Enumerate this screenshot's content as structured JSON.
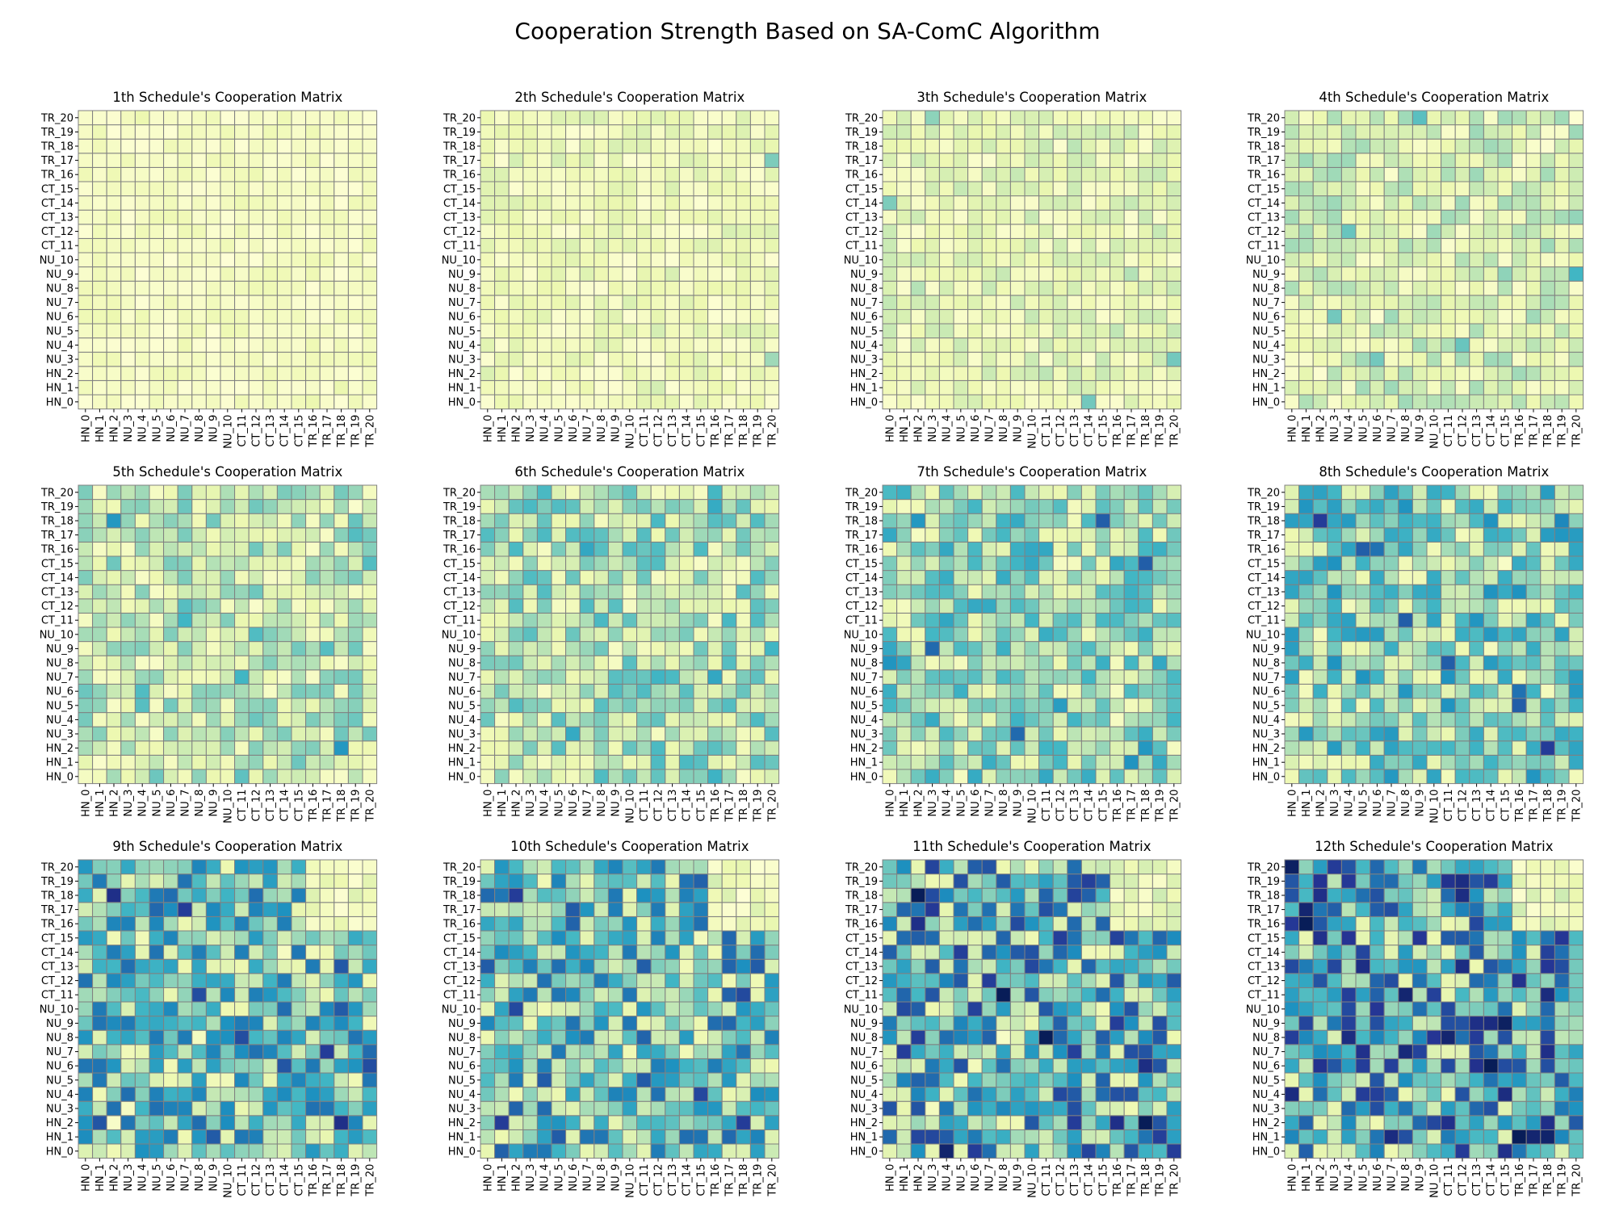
{
  "chart_data": {
    "type": "heatmap",
    "title": "Cooperation Strength Based on SA-ComC Algorithm",
    "labels": [
      "HN_0",
      "HN_1",
      "HN_2",
      "NU_3",
      "NU_4",
      "NU_5",
      "NU_6",
      "NU_7",
      "NU_8",
      "NU_9",
      "NU_10",
      "CT_11",
      "CT_12",
      "CT_13",
      "CT_14",
      "CT_15",
      "TR_16",
      "TR_17",
      "TR_18",
      "TR_19",
      "TR_20"
    ],
    "grid": "cell borders (gray)",
    "colormap": [
      "#ffffd9",
      "#edf8b1",
      "#c7e9b4",
      "#7fcdbb",
      "#41b6c4",
      "#1d91c0",
      "#225ea8",
      "#253494",
      "#081d58"
    ],
    "panels": [
      {
        "title": "1th Schedule's Cooperation Matrix",
        "intensity": 0.1,
        "seed": 11,
        "highlights": []
      },
      {
        "title": "2th Schedule's Cooperation Matrix",
        "intensity": 0.16,
        "seed": 23,
        "highlights": [
          [
            17,
            20,
            0.38
          ],
          [
            3,
            20,
            0.32
          ]
        ]
      },
      {
        "title": "3th Schedule's Cooperation Matrix",
        "intensity": 0.22,
        "seed": 37,
        "highlights": [
          [
            3,
            20,
            0.4
          ],
          [
            0,
            14,
            0.4
          ],
          [
            14,
            0,
            0.38
          ],
          [
            20,
            3,
            0.35
          ]
        ]
      },
      {
        "title": "4th Schedule's Cooperation Matrix",
        "intensity": 0.28,
        "seed": 41,
        "highlights": [
          [
            9,
            20,
            0.5
          ],
          [
            20,
            9,
            0.45
          ],
          [
            4,
            12,
            0.42
          ],
          [
            12,
            4,
            0.42
          ],
          [
            6,
            3,
            0.4
          ],
          [
            3,
            6,
            0.4
          ]
        ]
      },
      {
        "title": "5th Schedule's Cooperation Matrix",
        "intensity": 0.36,
        "seed": 53,
        "highlights": [
          [
            2,
            18,
            0.6
          ],
          [
            18,
            2,
            0.6
          ],
          [
            11,
            7,
            0.5
          ],
          [
            7,
            11,
            0.5
          ]
        ]
      },
      {
        "title": "6th Schedule's Cooperation Matrix",
        "intensity": 0.42,
        "seed": 67,
        "highlights": [
          [
            16,
            7,
            0.55
          ],
          [
            7,
            16,
            0.55
          ],
          [
            9,
            20,
            0.5
          ]
        ]
      },
      {
        "title": "7th Schedule's Cooperation Matrix",
        "intensity": 0.48,
        "seed": 71,
        "highlights": [
          [
            15,
            18,
            0.75
          ],
          [
            18,
            15,
            0.75
          ],
          [
            3,
            9,
            0.72
          ],
          [
            9,
            3,
            0.72
          ],
          [
            2,
            18,
            0.6
          ],
          [
            18,
            2,
            0.6
          ]
        ]
      },
      {
        "title": "8th Schedule's Cooperation Matrix",
        "intensity": 0.54,
        "seed": 83,
        "highlights": [
          [
            2,
            18,
            0.85
          ],
          [
            18,
            2,
            0.85
          ],
          [
            5,
            16,
            0.75
          ],
          [
            16,
            5,
            0.75
          ],
          [
            8,
            11,
            0.75
          ],
          [
            11,
            8,
            0.75
          ],
          [
            16,
            6,
            0.7
          ],
          [
            6,
            16,
            0.7
          ]
        ]
      },
      {
        "title": "9th Schedule's Cooperation Matrix",
        "intensity": 0.62,
        "seed": 97,
        "highlights": [
          [
            2,
            18,
            0.9
          ],
          [
            18,
            2,
            0.9
          ],
          [
            7,
            17,
            0.85
          ],
          [
            17,
            7,
            0.85
          ],
          [
            8,
            11,
            0.8
          ],
          [
            11,
            8,
            0.8
          ],
          [
            6,
            20,
            0.8
          ]
        ]
      },
      {
        "title": "10th Schedule's Cooperation Matrix",
        "intensity": 0.66,
        "seed": 101,
        "highlights": [
          [
            2,
            18,
            0.85
          ],
          [
            18,
            2,
            0.85
          ],
          [
            4,
            12,
            0.7
          ],
          [
            12,
            4,
            0.7
          ]
        ]
      },
      {
        "title": "11th Schedule's Cooperation Matrix",
        "intensity": 0.74,
        "seed": 113,
        "highlights": [
          [
            8,
            11,
            1.0
          ],
          [
            11,
            8,
            1.0
          ],
          [
            2,
            18,
            1.0
          ],
          [
            18,
            2,
            1.0
          ],
          [
            16,
            2,
            0.9
          ],
          [
            2,
            16,
            0.9
          ]
        ]
      },
      {
        "title": "12th Schedule's Cooperation Matrix",
        "intensity": 0.8,
        "seed": 127,
        "highlights": [
          [
            1,
            16,
            1.0
          ],
          [
            16,
            1,
            1.0
          ],
          [
            1,
            17,
            0.95
          ],
          [
            17,
            1,
            0.95
          ],
          [
            8,
            11,
            0.95
          ],
          [
            11,
            8,
            0.95
          ],
          [
            2,
            18,
            0.9
          ],
          [
            18,
            2,
            0.9
          ],
          [
            7,
            18,
            0.9
          ]
        ]
      }
    ]
  }
}
